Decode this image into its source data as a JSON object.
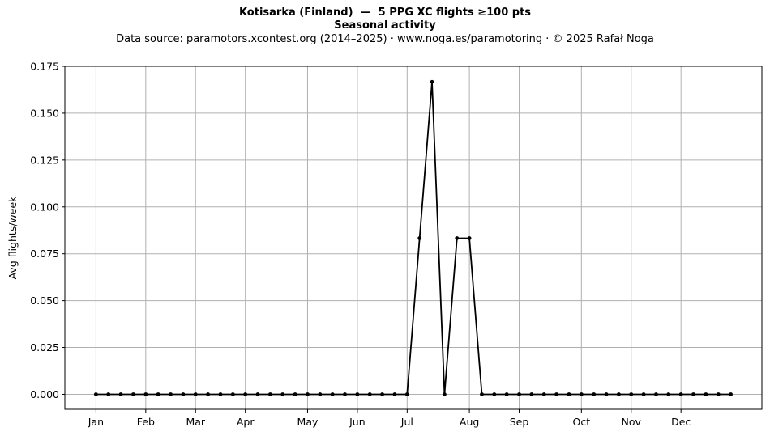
{
  "chart_data": {
    "type": "line",
    "title": "Kotisarka (Finland)  —  5 PPG XC flights ≥100 pts",
    "subtitle": "Seasonal activity",
    "caption": "Data source: paramotors.xcontest.org (2014–2025)  ·  www.noga.es/paramotoring  ·  © 2025 Rafał Noga",
    "xlabel": "",
    "ylabel": "Avg flights/week",
    "ylim": [
      -0.008,
      0.175
    ],
    "xlim": [
      -2.5,
      53.5
    ],
    "grid": true,
    "line_color": "#000000",
    "grid_color": "#b0b0b0",
    "y_ticks": [
      "0.000",
      "0.025",
      "0.050",
      "0.075",
      "0.100",
      "0.125",
      "0.150",
      "0.175"
    ],
    "y_tick_values": [
      0,
      0.025,
      0.05,
      0.075,
      0.1,
      0.125,
      0.15,
      0.175
    ],
    "x_ticks": [
      {
        "label": "Jan",
        "week": 0
      },
      {
        "label": "Feb",
        "week": 4
      },
      {
        "label": "Mar",
        "week": 8
      },
      {
        "label": "Apr",
        "week": 12
      },
      {
        "label": "May",
        "week": 17
      },
      {
        "label": "Jun",
        "week": 21
      },
      {
        "label": "Jul",
        "week": 25
      },
      {
        "label": "Aug",
        "week": 30
      },
      {
        "label": "Sep",
        "week": 34
      },
      {
        "label": "Oct",
        "week": 39
      },
      {
        "label": "Nov",
        "week": 43
      },
      {
        "label": "Dec",
        "week": 47
      }
    ],
    "series": [
      {
        "x": [
          0,
          1,
          2,
          3,
          4,
          5,
          6,
          7,
          8,
          9,
          10,
          11,
          12,
          13,
          14,
          15,
          16,
          17,
          18,
          19,
          20,
          21,
          22,
          23,
          24,
          25,
          26,
          27,
          28,
          29,
          30,
          31,
          32,
          33,
          34,
          35,
          36,
          37,
          38,
          39,
          40,
          41,
          42,
          43,
          44,
          45,
          46,
          47,
          48,
          49,
          50,
          51
        ],
        "values": [
          0,
          0,
          0,
          0,
          0,
          0,
          0,
          0,
          0,
          0,
          0,
          0,
          0,
          0,
          0,
          0,
          0,
          0,
          0,
          0,
          0,
          0,
          0,
          0,
          0,
          0,
          0.0833,
          0.1667,
          0,
          0.0833,
          0.0833,
          0,
          0,
          0,
          0,
          0,
          0,
          0,
          0,
          0,
          0,
          0,
          0,
          0,
          0,
          0,
          0,
          0,
          0,
          0,
          0,
          0
        ]
      }
    ]
  }
}
